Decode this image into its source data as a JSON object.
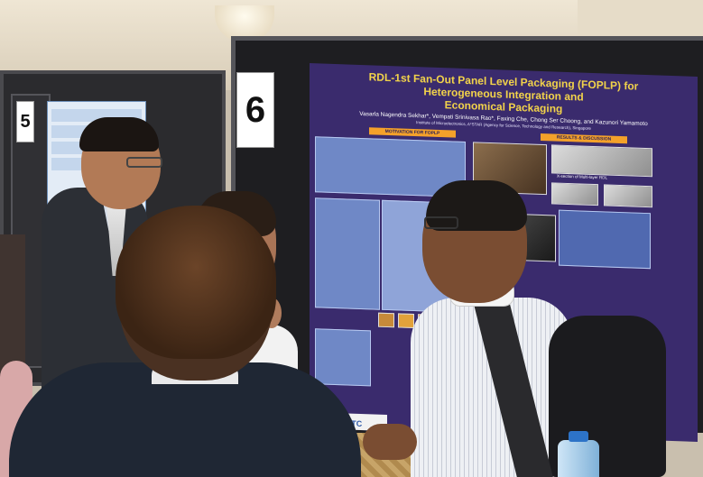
{
  "booth_number_main": "6",
  "booth_number_left": "5",
  "poster": {
    "title_line1": "RDL-1st Fan-Out Panel Level Packaging (FOPLP) for Heterogeneous Integration and",
    "title_line2": "Economical Packaging",
    "authors": "Vasarla Nagendra Sekhar*, Vempati Srinivasa Rao*, Faxing Che, Chong Ser Choong, and Kazunori Yamamoto",
    "affiliation": "Institute of Microelectronics, A*STAR (Agency for Science, Technology and Research), Singapore",
    "section_motivation": "MOTIVATION FOR FOPLP",
    "section_results": "RESULTS & DISCUSSION",
    "caption_multilayer": "X-section of Multi-layer RDL",
    "logo": "ECTC"
  },
  "colors": {
    "poster_background": "#3a2b6d",
    "poster_title": "#f2d34a",
    "section_header": "#f4a12a"
  }
}
